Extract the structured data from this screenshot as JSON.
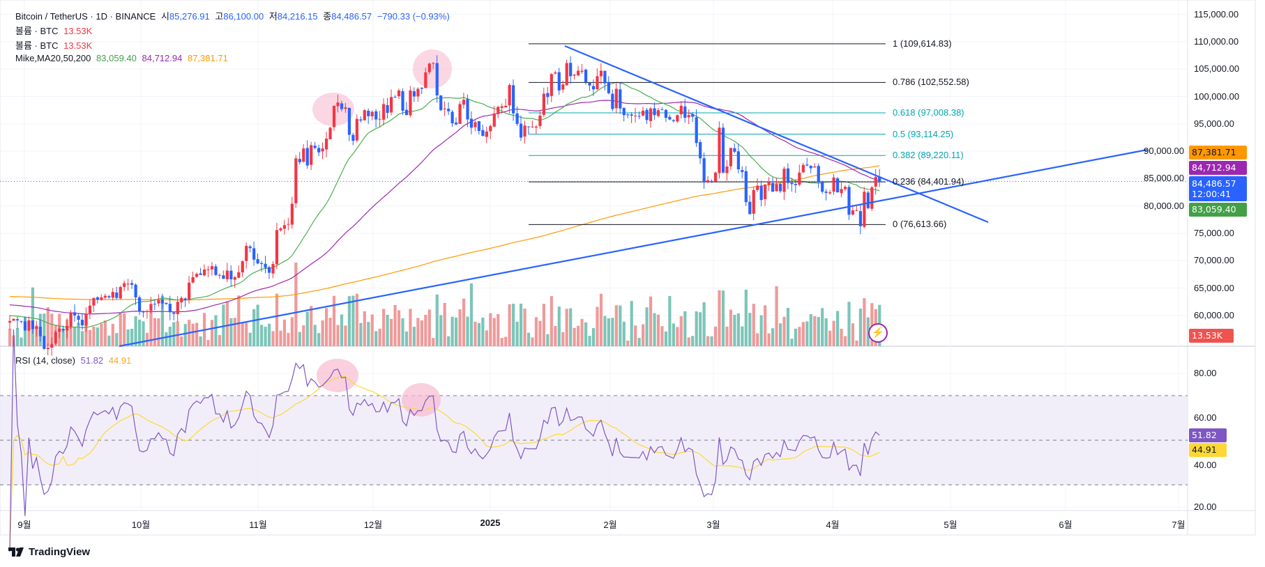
{
  "header": {
    "symbol": "Bitcoin / TetherUS · 1D · BINANCE",
    "o_label": "시",
    "o": "85,276.91",
    "h_label": "고",
    "h": "86,100.00",
    "l_label": "저",
    "l": "84,216.15",
    "c_label": "종",
    "c": "84,486.57",
    "change": "−790.33 (−0.93%)"
  },
  "volume_legends": [
    {
      "label": "볼륨 · BTC",
      "value": "13.53K"
    },
    {
      "label": "볼륨 · BTC",
      "value": "13.53K"
    }
  ],
  "ma_legend": {
    "label": "Mike,MA20,50,200",
    "ma20": "83,059.40",
    "ma50": "84,712.94",
    "ma200": "87,381.71"
  },
  "rsi_legend": {
    "label": "RSI (14, close)",
    "rsi": "51.82",
    "ma": "44.91"
  },
  "price_axis": [
    "115,000.00",
    "110,000.00",
    "105,000.00",
    "100,000.00",
    "95,000.00",
    "90,000.00",
    "85,000.00",
    "80,000.00",
    "75,000.00",
    "70,000.00",
    "65,000.00",
    "60,000.00"
  ],
  "rsi_axis": [
    "80.00",
    "60.00",
    "40.00",
    "20.00"
  ],
  "time_axis": [
    "9월",
    "10월",
    "11월",
    "12월",
    "2025",
    "2월",
    "3월",
    "4월",
    "5월",
    "6월",
    "7월"
  ],
  "tags": {
    "ma200": "87,381.71",
    "ma50": "84,712.94",
    "price": "84,486.57",
    "countdown": "12:00:41",
    "ma20": "83,059.40",
    "volume": "13.53K",
    "rsi": "51.82",
    "rsi_ma": "44.91"
  },
  "fib_levels": [
    {
      "label": "1 (109,614.83)",
      "price": 109614.83,
      "color": "#131722"
    },
    {
      "label": "0.786 (102,552.58)",
      "price": 102552.58,
      "color": "#131722"
    },
    {
      "label": "0.618 (97,008.38)",
      "price": 97008.38,
      "color": "#00a5b5"
    },
    {
      "label": "0.5 (93,114.25)",
      "price": 93114.25,
      "color": "#00a5b5"
    },
    {
      "label": "0.382 (89,220.11)",
      "price": 89220.11,
      "color": "#00a5b5"
    },
    {
      "label": "0.236 (84,401.94)",
      "price": 84401.94,
      "color": "#131722"
    },
    {
      "label": "0 (76,613.66)",
      "price": 76613.66,
      "color": "#131722"
    }
  ],
  "brand": "TradingView",
  "colors": {
    "up": "#f23645",
    "down": "#2962ff",
    "ma20": "#4caf50",
    "ma50": "#9c27b0",
    "ma200": "#ff9800",
    "rsi": "#7e57c2",
    "rsi_ma": "#fdd835",
    "trend": "#2962ff"
  },
  "chart_data": {
    "type": "candlestick",
    "title": "Bitcoin / TetherUS · 1D · BINANCE",
    "start_date": "2024-08-28",
    "end_date": "2025-04-13",
    "ylim": [
      57000,
      115000
    ],
    "closes_k": [
      59.0,
      59.4,
      59.1,
      58.9,
      57.3,
      59.1,
      57.5,
      58.0,
      56.2,
      53.9,
      54.1,
      54.8,
      57.0,
      57.6,
      57.3,
      58.1,
      60.5,
      60.0,
      59.2,
      58.2,
      60.3,
      61.8,
      63.2,
      62.9,
      63.3,
      63.6,
      63.3,
      64.3,
      63.2,
      65.2,
      65.9,
      65.8,
      65.6,
      63.3,
      60.8,
      60.6,
      60.8,
      62.1,
      62.1,
      62.8,
      62.2,
      62.1,
      60.6,
      60.3,
      62.5,
      63.2,
      62.8,
      66.0,
      67.0,
      67.6,
      67.4,
      68.4,
      68.4,
      69.0,
      67.4,
      67.4,
      66.7,
      68.2,
      66.6,
      67.0,
      67.9,
      69.9,
      72.7,
      72.3,
      70.2,
      69.5,
      69.4,
      68.7,
      67.8,
      69.4,
      75.6,
      75.9,
      76.5,
      76.7,
      80.4,
      88.7,
      88.0,
      90.5,
      87.4,
      91.1,
      90.6,
      89.8,
      90.5,
      92.3,
      94.3,
      98.3,
      98.9,
      97.7,
      98.0,
      93.0,
      91.9,
      95.9,
      95.6,
      97.5,
      96.4,
      97.2,
      95.8,
      95.9,
      98.6,
      97.0,
      99.9,
      99.9,
      101.1,
      97.4,
      96.6,
      101.1,
      100.0,
      101.4,
      101.4,
      104.4,
      106.0,
      106.1,
      100.2,
      97.5,
      97.8,
      97.3,
      95.1,
      94.9,
      98.6,
      99.4,
      95.8,
      94.3,
      95.3,
      93.7,
      92.8,
      93.6,
      94.6,
      96.9,
      98.1,
      98.2,
      98.3,
      102.1,
      96.9,
      95.0,
      92.5,
      94.7,
      94.5,
      94.5,
      94.5,
      96.5,
      100.5,
      99.9,
      104.1,
      104.4,
      101.1,
      102.2,
      106.1,
      103.7,
      104.0,
      104.7,
      104.7,
      102.6,
      102.0,
      101.3,
      103.7,
      104.7,
      102.4,
      100.6,
      97.7,
      101.4,
      97.8,
      96.6,
      96.6,
      96.5,
      96.5,
      96.4,
      97.4,
      95.7,
      97.8,
      96.6,
      97.5,
      97.6,
      96.1,
      95.8,
      95.5,
      96.6,
      98.3,
      96.1,
      96.6,
      96.3,
      91.5,
      88.7,
      84.3,
      84.7,
      84.3,
      86.1,
      94.3,
      86.1,
      87.2,
      90.6,
      89.9,
      86.7,
      86.2,
      80.7,
      78.5,
      82.9,
      83.7,
      81.1,
      83.9,
      84.3,
      82.6,
      84.0,
      82.7,
      86.8,
      84.2,
      84.0,
      83.8,
      86.1,
      87.5,
      87.4,
      86.9,
      87.2,
      84.4,
      82.6,
      82.4,
      82.5,
      85.2,
      82.5,
      83.1,
      83.5,
      78.4,
      79.2,
      79.2,
      76.3,
      82.6,
      79.6,
      83.4,
      85.3,
      84.5
    ],
    "indicators": [
      "MA20",
      "MA50",
      "MA200",
      "Volume",
      "RSI 14 + MA14"
    ],
    "rsi_range": [
      20,
      80
    ],
    "rsi_bands": [
      30,
      50,
      70
    ]
  }
}
